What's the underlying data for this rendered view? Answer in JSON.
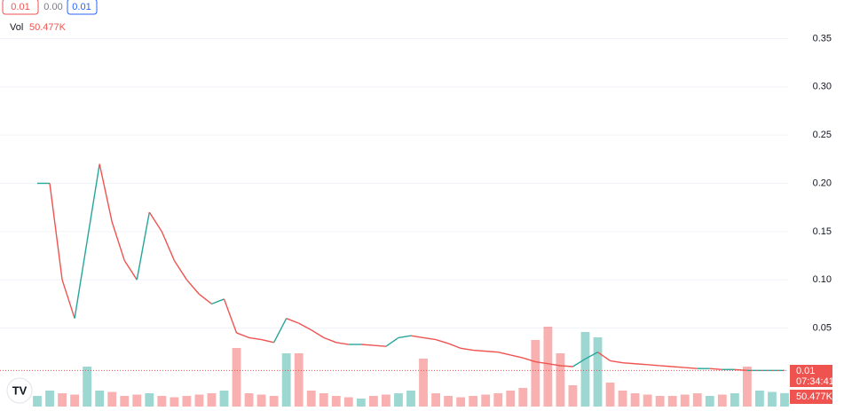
{
  "chart_data": {
    "type": "line",
    "header_values": [
      "0.01",
      "0.00",
      "0.01"
    ],
    "volume_label": "Vol",
    "volume_value_label": "50.477K",
    "last_price_label": "0.01",
    "countdown": "07:34:41",
    "up_color": "#26a69a",
    "down_color": "#ef5350",
    "grid": true,
    "ylim": [
      -0.036,
      0.39
    ],
    "yticks": [
      0.05,
      {
        "value": 0.1,
        "label": "0.10"
      },
      0.15,
      {
        "value": 0.2,
        "label": "0.20"
      },
      0.25,
      {
        "value": 0.3,
        "label": "0.30"
      },
      0.35
    ],
    "values": [
      0.2,
      0.2,
      0.1,
      0.06,
      0.14,
      0.22,
      0.16,
      0.12,
      0.1,
      0.17,
      0.15,
      0.12,
      0.1,
      0.085,
      0.075,
      0.08,
      0.045,
      0.04,
      0.038,
      0.035,
      0.06,
      0.055,
      0.048,
      0.04,
      0.035,
      0.033,
      0.033,
      0.032,
      0.031,
      0.04,
      0.042,
      0.04,
      0.038,
      0.034,
      0.029,
      0.027,
      0.026,
      0.025,
      0.022,
      0.019,
      0.015,
      0.013,
      0.011,
      0.01,
      0.018,
      0.025,
      0.016,
      0.014,
      0.013,
      0.012,
      0.011,
      0.01,
      0.009,
      0.008,
      0.008,
      0.007,
      0.007,
      0.006,
      0.006,
      0.006,
      0.006
    ],
    "volume": {
      "ylim": [
        0,
        400
      ],
      "values": [
        40,
        60,
        50,
        45,
        150,
        60,
        55,
        40,
        45,
        50,
        40,
        35,
        40,
        45,
        50,
        60,
        220,
        50,
        45,
        40,
        200,
        200,
        60,
        50,
        40,
        35,
        30,
        40,
        45,
        50,
        60,
        180,
        50,
        40,
        35,
        40,
        45,
        50,
        60,
        70,
        250,
        300,
        200,
        80,
        280,
        260,
        90,
        60,
        50,
        45,
        40,
        40,
        45,
        50,
        40,
        45,
        50,
        150,
        60,
        55,
        50.477
      ]
    }
  }
}
